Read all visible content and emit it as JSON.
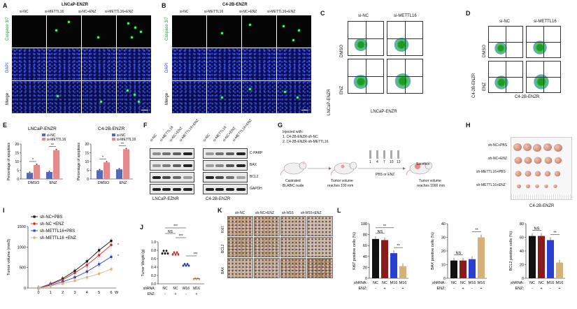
{
  "panels": {
    "A": {
      "letter": "A",
      "title": "LNCaP-ENZR",
      "columns": [
        "si-NC",
        "si-METTL16",
        "si-NC+ENZ",
        "si-METTL16+ENZ"
      ],
      "rows": [
        "Caspase 3/7",
        "DAPI",
        "Merge"
      ]
    },
    "B": {
      "letter": "B",
      "title": "C4-2B-ENZR",
      "columns": [
        "si-NC",
        "si-METTL16",
        "si-NC+ENZ",
        "si-METTL16+ENZ"
      ],
      "rows": [
        "Caspase 3/7",
        "DAPI",
        "Merge"
      ]
    },
    "C": {
      "letter": "C",
      "columns": [
        "si-NC",
        "si-METTL16"
      ],
      "rows": [
        "DMSO",
        "ENZ"
      ],
      "side_label": "LNCaP-ENZR",
      "bottom_label": "LNCaP-ENZR"
    },
    "D": {
      "letter": "D",
      "columns": [
        "si-NC",
        "si-METTL16"
      ],
      "rows": [
        "DMSO",
        "ENZ"
      ],
      "side_label": "C4-2B-ENZR",
      "bottom_label": "C4-2B-ENZR"
    },
    "E": {
      "letter": "E",
      "charts": [
        {
          "title": "LNCaP-ENZR",
          "ylabel": "Percentage of apoptosis",
          "yticks": [
            "0",
            "5",
            "10",
            "15",
            "20"
          ],
          "categories": [
            "DMSO",
            "ENZ"
          ],
          "legend": [
            "si-NC",
            "si-METTL16"
          ],
          "sig": [
            "*",
            "**"
          ]
        },
        {
          "title": "C4-2B-ENZR",
          "ylabel": "Percentage of apoptosis",
          "yticks": [
            "0",
            "5",
            "10",
            "15",
            "20"
          ],
          "categories": [
            "DMSO",
            "ENZ"
          ],
          "legend": [
            "si-NC",
            "si-METTL16"
          ],
          "sig": [
            "*",
            "**"
          ]
        }
      ]
    },
    "F": {
      "letter": "F",
      "lanes": [
        "si-NC",
        "si-METTL16",
        "si-NC+ENZ",
        "si-METTL16+ENZ"
      ],
      "proteins": [
        "C-PARP",
        "BAX",
        "BCL2",
        "GAPDH"
      ],
      "cells": [
        "LNCaP-EZNR",
        "C4-2B-ENZR"
      ]
    },
    "G": {
      "letter": "G",
      "injected_title": "Injected with:",
      "injected": [
        "1.   C4-2B-ENZR-sh-NC",
        "2.   C4-2B-ENZR-sh-METTL16"
      ],
      "mouse1": [
        "Castrated",
        "BLAB/C nude"
      ],
      "mouse2": [
        "Tumor volume",
        "reaches 100 mm"
      ],
      "days": [
        "1",
        "4",
        "7",
        "10",
        "13"
      ],
      "treatment": "PBS or ENZ",
      "sacrifice": "Sacrifice",
      "mouse3": [
        "Tumor volume",
        "reaches 1000 mm"
      ]
    },
    "H": {
      "letter": "H",
      "rows": [
        "sh-NC+PBS",
        "sh-NC+ENZ",
        "sh-METTL16+PBS",
        "sh-METTL16+ENZ"
      ],
      "bottom": "C4-2B-ENZR"
    },
    "I": {
      "letter": "I",
      "ylabel": "Tumor volume (mm3)",
      "yticks": [
        "0",
        "500",
        "1000",
        "1500"
      ],
      "xticks": [
        "0",
        "1",
        "2",
        "3",
        "4",
        "5",
        "6"
      ],
      "xunit": "W",
      "legend": [
        "sh-NC+PBS",
        "sh-NC +ENZ",
        "sh-METTL16+PBS",
        "sh-METTL16 +ENZ"
      ],
      "colors": [
        "#111111",
        "#e0261f",
        "#2a3fd1",
        "#e0b27a"
      ]
    },
    "J": {
      "letter": "J",
      "ylabel": "Tumor Weight (g)",
      "yticks": [
        "0.0",
        "0.2",
        "0.4",
        "0.6",
        "0.8",
        "1.0"
      ],
      "shrna_label": "shRNA:",
      "enz_label": "ENZ:",
      "shrna": [
        "NC",
        "NC",
        "M16",
        "M16"
      ],
      "enz": [
        "-",
        "+",
        "-",
        "+"
      ],
      "sig": [
        "NS",
        "***",
        "***",
        "***"
      ]
    },
    "K": {
      "letter": "K",
      "columns": [
        "sh-NC",
        "sh-NC+ENZ",
        "sh-M16",
        "sh-M16+ENZ"
      ],
      "rows": [
        "Ki67",
        "BCL2",
        "BAX"
      ]
    },
    "L": {
      "letter": "L",
      "charts": [
        {
          "ylabel": "Ki67 positive cells (%)",
          "yticks": [
            "0",
            "20",
            "40",
            "60",
            "80",
            "100"
          ],
          "sig": [
            "**",
            "NS",
            "**"
          ]
        },
        {
          "ylabel": "BAX positive cells (%)",
          "yticks": [
            "0",
            "10",
            "20",
            "30",
            "40"
          ],
          "sig": [
            "NS",
            "**"
          ]
        },
        {
          "ylabel": "BCL2 positive cells (%)",
          "yticks": [
            "0",
            "20",
            "40",
            "60",
            "80"
          ],
          "sig": [
            "NS",
            "**"
          ]
        }
      ],
      "shrna_label": "shRNA:",
      "enz_label": "ENZ:",
      "shrna": [
        "NC",
        "NC",
        "M16",
        "M16"
      ],
      "enz": [
        "-",
        "+",
        "-",
        "+"
      ],
      "bar_colors": [
        "#111111",
        "#8b1a1a",
        "#2a3fd1",
        "#d8b07a"
      ]
    }
  },
  "chart_data": [
    {
      "type": "bar",
      "title": "LNCaP-ENZR",
      "categories": [
        "DMSO",
        "ENZ"
      ],
      "series": [
        {
          "name": "si-NC",
          "values": [
            3.5,
            4
          ]
        },
        {
          "name": "si-METTL16",
          "values": [
            8,
            16.5
          ]
        }
      ],
      "ylabel": "Percentage of apoptosis",
      "ylim": [
        0,
        20
      ]
    },
    {
      "type": "bar",
      "title": "C4-2B-ENZR",
      "categories": [
        "DMSO",
        "ENZ"
      ],
      "series": [
        {
          "name": "si-NC",
          "values": [
            5,
            5.5
          ]
        },
        {
          "name": "si-METTL16",
          "values": [
            9.5,
            17
          ]
        }
      ],
      "ylabel": "Percentage of apoptosis",
      "ylim": [
        0,
        20
      ]
    },
    {
      "type": "line",
      "x": [
        0,
        1,
        2,
        3,
        4,
        5,
        6
      ],
      "series": [
        {
          "name": "sh-NC+PBS",
          "values": [
            0,
            100,
            230,
            420,
            650,
            920,
            1150
          ]
        },
        {
          "name": "sh-NC +ENZ",
          "values": [
            0,
            90,
            200,
            370,
            560,
            800,
            1050
          ]
        },
        {
          "name": "sh-METTL16+PBS",
          "values": [
            0,
            70,
            150,
            260,
            400,
            580,
            760
          ]
        },
        {
          "name": "sh-METTL16 +ENZ",
          "values": [
            0,
            50,
            110,
            180,
            260,
            350,
            460
          ]
        }
      ],
      "ylabel": "Tumor volume (mm3)",
      "ylim": [
        0,
        1500
      ]
    },
    {
      "type": "scatter",
      "categories": [
        "NC -",
        "NC +",
        "M16 -",
        "M16 +"
      ],
      "values": [
        0.75,
        0.72,
        0.45,
        0.12
      ],
      "ylabel": "Tumor Weight (g)",
      "ylim": [
        0,
        1.0
      ]
    },
    {
      "type": "bar",
      "categories": [
        "NC -",
        "NC +",
        "M16 -",
        "M16 +"
      ],
      "values": [
        72,
        70,
        46,
        22
      ],
      "ylabel": "Ki67 positive cells (%)",
      "ylim": [
        0,
        100
      ]
    },
    {
      "type": "bar",
      "categories": [
        "NC -",
        "NC +",
        "M16 -",
        "M16 +"
      ],
      "values": [
        13,
        13,
        14,
        30
      ],
      "ylabel": "BAX positive cells (%)",
      "ylim": [
        0,
        40
      ]
    },
    {
      "type": "bar",
      "categories": [
        "NC -",
        "NC +",
        "M16 -",
        "M16 +"
      ],
      "values": [
        62,
        62,
        56,
        23
      ],
      "ylabel": "BCL2 positive cells (%)",
      "ylim": [
        0,
        80
      ]
    }
  ]
}
